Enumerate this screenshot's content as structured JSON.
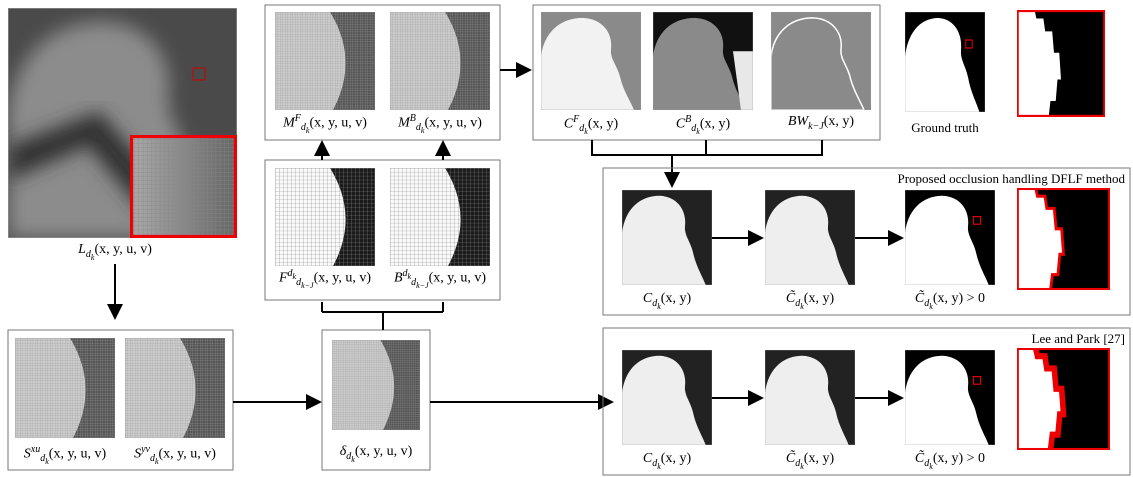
{
  "panels": {
    "L": {
      "main": "L",
      "sub": "d",
      "subsub": "k",
      "args": "(x, y, u, v)"
    },
    "Sxu": {
      "main": "S",
      "sup": "xu",
      "sub": "d",
      "subsub": "k",
      "args": "(x, y, u, v)"
    },
    "Syv": {
      "main": "S",
      "sup": "yv",
      "sub": "d",
      "subsub": "k",
      "args": "(x, y, u, v)"
    },
    "delta": {
      "main": "δ",
      "sub": "d",
      "subsub": "k",
      "args": "(x, y, u, v)"
    },
    "F": {
      "main": "F",
      "sup": "d",
      "supsub": "k",
      "sub": "d",
      "subsub": "k−J",
      "args": "(x, y, u, v)"
    },
    "B": {
      "main": "B",
      "sup": "d",
      "supsub": "k",
      "sub": "d",
      "subsub": "k−J",
      "args": "(x, y, u, v)"
    },
    "MF": {
      "main": "M",
      "sup": "F",
      "sub": "d",
      "subsub": "k",
      "args": "(x, y, u, v)"
    },
    "MB": {
      "main": "M",
      "sup": "B",
      "sub": "d",
      "subsub": "k",
      "args": "(x, y, u, v)"
    },
    "CF": {
      "main": "C",
      "sup": "F",
      "sub": "d",
      "subsub": "k",
      "args": "(x, y)"
    },
    "CB": {
      "main": "C",
      "sup": "B",
      "sub": "d",
      "subsub": "k",
      "args": "(x, y)"
    },
    "BW": {
      "main": "BW",
      "sub": "k−J",
      "args": "(x, y)"
    }
  },
  "ground_truth": "Ground truth",
  "proposed": {
    "title": "Proposed occlusion handling DFLF method",
    "labels": [
      {
        "main": "C",
        "sub": "d",
        "subsub": "k",
        "args": "(x, y)"
      },
      {
        "main": "C̃",
        "sub": "d",
        "subsub": "k",
        "args": "(x, y)"
      },
      {
        "main": "C̃",
        "sub": "d",
        "subsub": "k",
        "args": "(x, y) > 0"
      }
    ]
  },
  "lee": {
    "title": "Lee and Park [27]",
    "labels": [
      {
        "main": "C",
        "sub": "d",
        "subsub": "k",
        "args": "(x, y)"
      },
      {
        "main": "C̃",
        "sub": "d",
        "subsub": "k",
        "args": "(x, y)"
      },
      {
        "main": "C̃",
        "sub": "d",
        "subsub": "k",
        "args": "(x, y) > 0"
      }
    ]
  }
}
